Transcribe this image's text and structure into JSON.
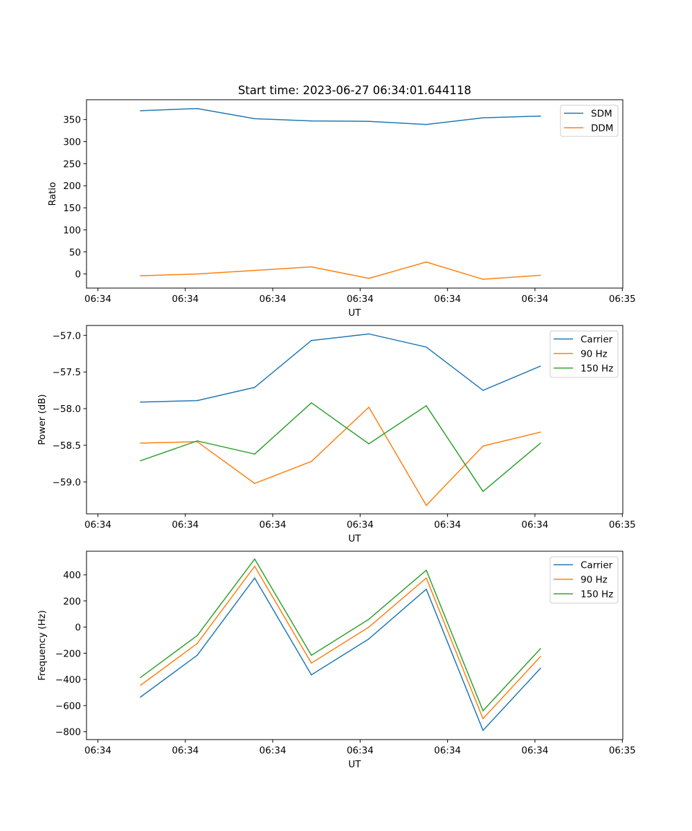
{
  "figure_title": "Start time: 2023-06-27 06:34:01.644118",
  "colors": {
    "blue": "#1f77b4",
    "orange": "#ff7f0e",
    "green": "#2ca02c"
  },
  "chart_data": [
    {
      "type": "line",
      "title": "Start time: 2023-06-27 06:34:01.644118",
      "xlabel": "UT",
      "ylabel": "Ratio",
      "x_tick_labels": [
        "06:34",
        "06:34",
        "06:34",
        "06:34",
        "06:34",
        "06:34",
        "06:35"
      ],
      "y_ticks": [
        0,
        50,
        100,
        150,
        200,
        250,
        300,
        350
      ],
      "y_tick_labels": [
        "0",
        "50",
        "100",
        "150",
        "200",
        "250",
        "300",
        "350"
      ],
      "ylim": [
        -32,
        395
      ],
      "grid": false,
      "legend_position": "top-right",
      "series": [
        {
          "name": "SDM",
          "color": "#1f77b4",
          "values": [
            370,
            375,
            352,
            347,
            346,
            339,
            354,
            358
          ]
        },
        {
          "name": "DDM",
          "color": "#ff7f0e",
          "values": [
            -4,
            0,
            8,
            16,
            -10,
            27,
            -12,
            -3
          ]
        }
      ]
    },
    {
      "type": "line",
      "title": "",
      "xlabel": "UT",
      "ylabel": "Power (dB)",
      "x_tick_labels": [
        "06:34",
        "06:34",
        "06:34",
        "06:34",
        "06:34",
        "06:34",
        "06:35"
      ],
      "y_ticks": [
        -57.0,
        -57.5,
        -58.0,
        -58.5,
        -59.0
      ],
      "y_tick_labels": [
        "−57.0",
        "−57.5",
        "−58.0",
        "−58.5",
        "−59.0"
      ],
      "ylim": [
        -59.435,
        -56.865
      ],
      "grid": false,
      "legend_position": "top-right",
      "series": [
        {
          "name": "Carrier",
          "color": "#1f77b4",
          "values": [
            -57.91,
            -57.89,
            -57.71,
            -57.07,
            -56.98,
            -57.16,
            -57.75,
            -57.42
          ]
        },
        {
          "name": "90 Hz",
          "color": "#ff7f0e",
          "values": [
            -58.47,
            -58.45,
            -59.02,
            -58.72,
            -57.98,
            -59.32,
            -58.51,
            -58.32
          ]
        },
        {
          "name": "150 Hz",
          "color": "#2ca02c",
          "values": [
            -58.71,
            -58.44,
            -58.62,
            -57.92,
            -58.48,
            -57.96,
            -59.13,
            -58.47
          ]
        }
      ]
    },
    {
      "type": "line",
      "title": "",
      "xlabel": "UT",
      "ylabel": "Frequency (Hz)",
      "x_tick_labels": [
        "06:34",
        "06:34",
        "06:34",
        "06:34",
        "06:34",
        "06:34",
        "06:35"
      ],
      "y_ticks": [
        -800,
        -600,
        -400,
        -200,
        0,
        200,
        400
      ],
      "y_tick_labels": [
        "−800",
        "−600",
        "−400",
        "−200",
        "0",
        "200",
        "400"
      ],
      "ylim": [
        -860,
        580
      ],
      "grid": false,
      "legend_position": "top-right",
      "series": [
        {
          "name": "Carrier",
          "color": "#1f77b4",
          "values": [
            -535,
            -215,
            375,
            -365,
            -90,
            290,
            -790,
            -315
          ]
        },
        {
          "name": "90 Hz",
          "color": "#ff7f0e",
          "values": [
            -445,
            -125,
            465,
            -275,
            0,
            375,
            -700,
            -225
          ]
        },
        {
          "name": "150 Hz",
          "color": "#2ca02c",
          "values": [
            -385,
            -65,
            520,
            -215,
            60,
            435,
            -640,
            -165
          ]
        }
      ]
    }
  ]
}
